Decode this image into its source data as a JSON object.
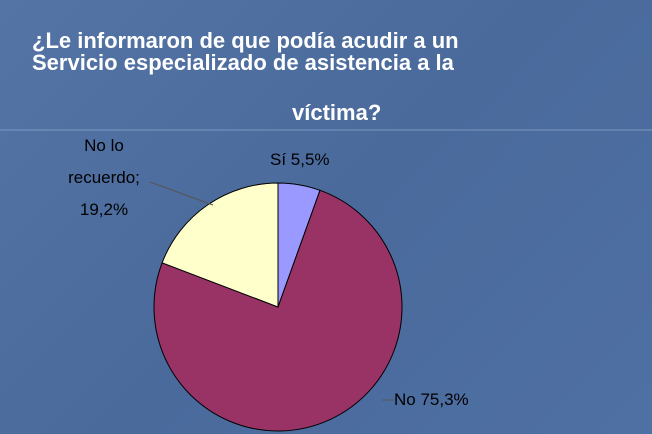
{
  "chart_data": {
    "type": "pie",
    "title": [
      "¿Le informaron de que podía acudir a un",
      "Servicio especializado de asistencia a la",
      "víctima?"
    ],
    "categories": [
      "Sí",
      "No",
      "No lo recuerdo;"
    ],
    "values": [
      5.5,
      75.3,
      19.2
    ],
    "value_labels": [
      "5,5%",
      "75,3%",
      "19,2%"
    ],
    "colors": [
      "#9999ff",
      "#993366",
      "#ffffcc"
    ]
  }
}
